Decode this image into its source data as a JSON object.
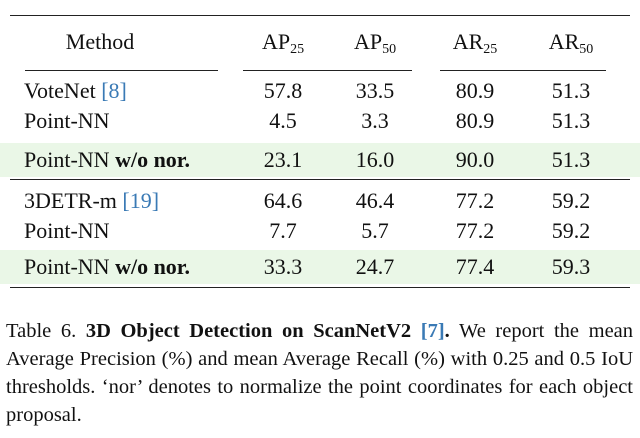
{
  "table": {
    "header": [
      "Method",
      {
        "text": "AP",
        "sub": "25"
      },
      {
        "text": "AP",
        "sub": "50"
      },
      {
        "text": "AR",
        "sub": "25"
      },
      {
        "text": "AR",
        "sub": "50"
      }
    ],
    "rows": [
      {
        "method": {
          "name": "VoteNet",
          "ref": "[8]"
        },
        "values": [
          "57.8",
          "33.5",
          "80.9",
          "51.3"
        ]
      },
      {
        "method": {
          "name": "Point-NN"
        },
        "values": [
          "4.5",
          "3.3",
          "80.9",
          "51.3"
        ]
      },
      {
        "method": {
          "name": "Point-NN",
          "variant": "w/o nor."
        },
        "values": [
          "23.1",
          "16.0",
          "90.0",
          "51.3"
        ]
      },
      {
        "method": {
          "name": "3DETR-m",
          "ref": "[19]"
        },
        "values": [
          "64.6",
          "46.4",
          "77.2",
          "59.2"
        ]
      },
      {
        "method": {
          "name": "Point-NN"
        },
        "values": [
          "7.7",
          "5.7",
          "77.2",
          "59.2"
        ]
      },
      {
        "method": {
          "name": "Point-NN",
          "variant": "w/o nor."
        },
        "values": [
          "33.3",
          "24.7",
          "77.4",
          "59.3"
        ]
      }
    ]
  },
  "caption": {
    "label": "Table 6.",
    "title": "3D Object Detection on ScanNetV2",
    "ref": "[7]",
    "title_end": ".",
    "text": "We report the mean Average Precision (%) and mean Average Recall (%) with 0.25 and 0.5 IoU thresholds. ‘nor’ denotes to normalize the point coordinates for each object proposal."
  }
}
